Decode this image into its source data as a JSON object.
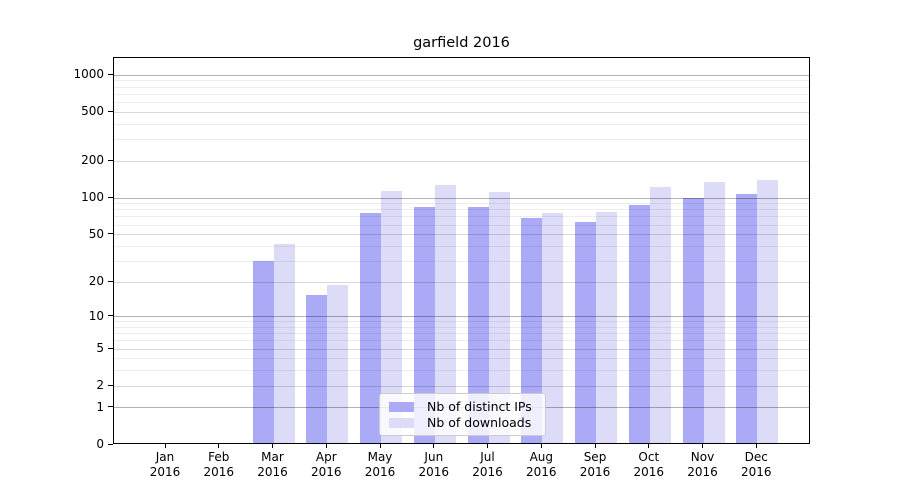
{
  "chart_data": {
    "type": "bar",
    "title": "garfield 2016",
    "categories": [
      "Jan",
      "Feb",
      "Mar",
      "Apr",
      "May",
      "Jun",
      "Jul",
      "Aug",
      "Sep",
      "Oct",
      "Nov",
      "Dec"
    ],
    "year": "2016",
    "series": [
      {
        "name": "Nb of distinct IPs",
        "color": "#aaaaf6",
        "values": [
          0,
          0,
          29,
          15,
          72,
          82,
          82,
          66,
          61,
          85,
          96,
          103
        ]
      },
      {
        "name": "Nb of downloads",
        "color": "#dcdcf9",
        "values": [
          0,
          0,
          40,
          18,
          110,
          122,
          108,
          72,
          74,
          118,
          130,
          135
        ]
      }
    ],
    "y_ticks": [
      1000,
      500,
      200,
      100,
      50,
      20,
      10,
      5,
      2,
      1,
      0
    ],
    "grid_minor": [
      3,
      4,
      6,
      7,
      8,
      9,
      30,
      40,
      60,
      70,
      80,
      90,
      300,
      400,
      600,
      700,
      800,
      900
    ],
    "scale": "log10(1+v)",
    "ylim": [
      0,
      1380
    ],
    "grid": true,
    "legend_position": "lower center",
    "colors": {
      "grid_major": "rgba(0,0,0,0.30)",
      "grid_mid": "rgba(0,0,0,0.15)",
      "grid_minor": "rgba(0,0,0,0.07)",
      "axis": "#000000",
      "background": "#ffffff"
    }
  }
}
